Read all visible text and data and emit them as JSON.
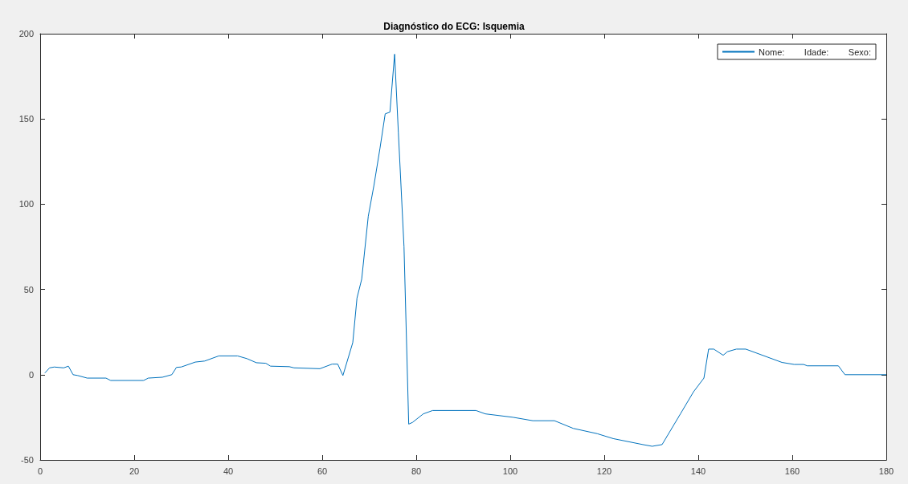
{
  "chart_data": {
    "type": "line",
    "title": "Diagnóstico do ECG: Isquemia",
    "xlim": [
      0,
      180
    ],
    "xticks": [
      0,
      20,
      40,
      60,
      80,
      100,
      120,
      140,
      160,
      180
    ],
    "ylim": [
      -50,
      200
    ],
    "yticks": [
      -50,
      0,
      50,
      100,
      150,
      200
    ],
    "grid": false,
    "legend": "top right",
    "marker": "none",
    "line_style": "solid",
    "series": [
      {
        "name": "Nome:        Idade:        Sexo:",
        "color": "#0072bd",
        "x": [
          1,
          2,
          3,
          5,
          6,
          7,
          8,
          10,
          14,
          15,
          22,
          23,
          26,
          28,
          29,
          30,
          33,
          35,
          38,
          42,
          44,
          46,
          48,
          49,
          53,
          54,
          59.5,
          62.1,
          63.3,
          64.4,
          66.5,
          67.4,
          68.4,
          69.8,
          71,
          72.3,
          73.4,
          74.4,
          75.4,
          76.2,
          77.4,
          78.4,
          79.2,
          81.5,
          83.5,
          92.7,
          94.7,
          100.6,
          104.8,
          109.4,
          113.4,
          118.5,
          121.9,
          128.2,
          130.2,
          132.3,
          136.2,
          139,
          141.2,
          142.2,
          143.3,
          145.3,
          146.2,
          148.1,
          150.1,
          157.8,
          160.4,
          162.4,
          163.2,
          169.8,
          171.2,
          180
        ],
        "values": [
          1,
          4,
          4.5,
          4,
          5,
          0,
          -0.5,
          -2,
          -2,
          -3.4,
          -3.4,
          -2,
          -1.5,
          0,
          4.3,
          4.5,
          7.4,
          8,
          11,
          11,
          9.4,
          7,
          6.7,
          5,
          4.7,
          4,
          3.5,
          6.2,
          6.2,
          -0.5,
          18.8,
          45,
          56,
          93,
          111,
          133,
          153,
          154,
          188,
          142,
          75,
          -29,
          -28,
          -23,
          -21,
          -21,
          -23,
          -25,
          -27,
          -27,
          -31.5,
          -34.6,
          -37.5,
          -41,
          -42,
          -41,
          -23,
          -10,
          -2,
          15,
          15,
          11.4,
          13.5,
          15,
          15,
          7.2,
          6,
          6,
          5.2,
          5.2,
          0,
          0
        ]
      }
    ]
  }
}
